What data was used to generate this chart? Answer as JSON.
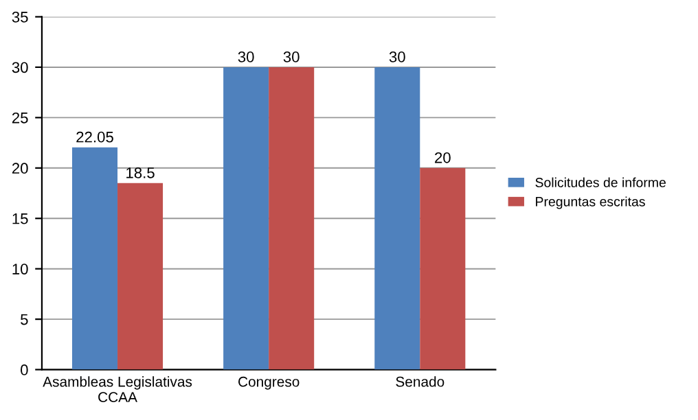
{
  "chart_data": {
    "type": "bar",
    "categories": [
      "Asambleas Legislativas\nCCAA",
      "Congreso",
      "Senado"
    ],
    "series": [
      {
        "name": "Solicitudes de informe",
        "color": "#4f81bd",
        "values": [
          22.05,
          30,
          30
        ]
      },
      {
        "name": "Preguntas escritas",
        "color": "#c0504d",
        "values": [
          18.5,
          30,
          20
        ]
      }
    ],
    "ylim": [
      0,
      35
    ],
    "yticks": [
      0,
      5,
      10,
      15,
      20,
      25,
      30,
      35
    ],
    "grid": "y",
    "legend": "right",
    "data_labels": true
  }
}
